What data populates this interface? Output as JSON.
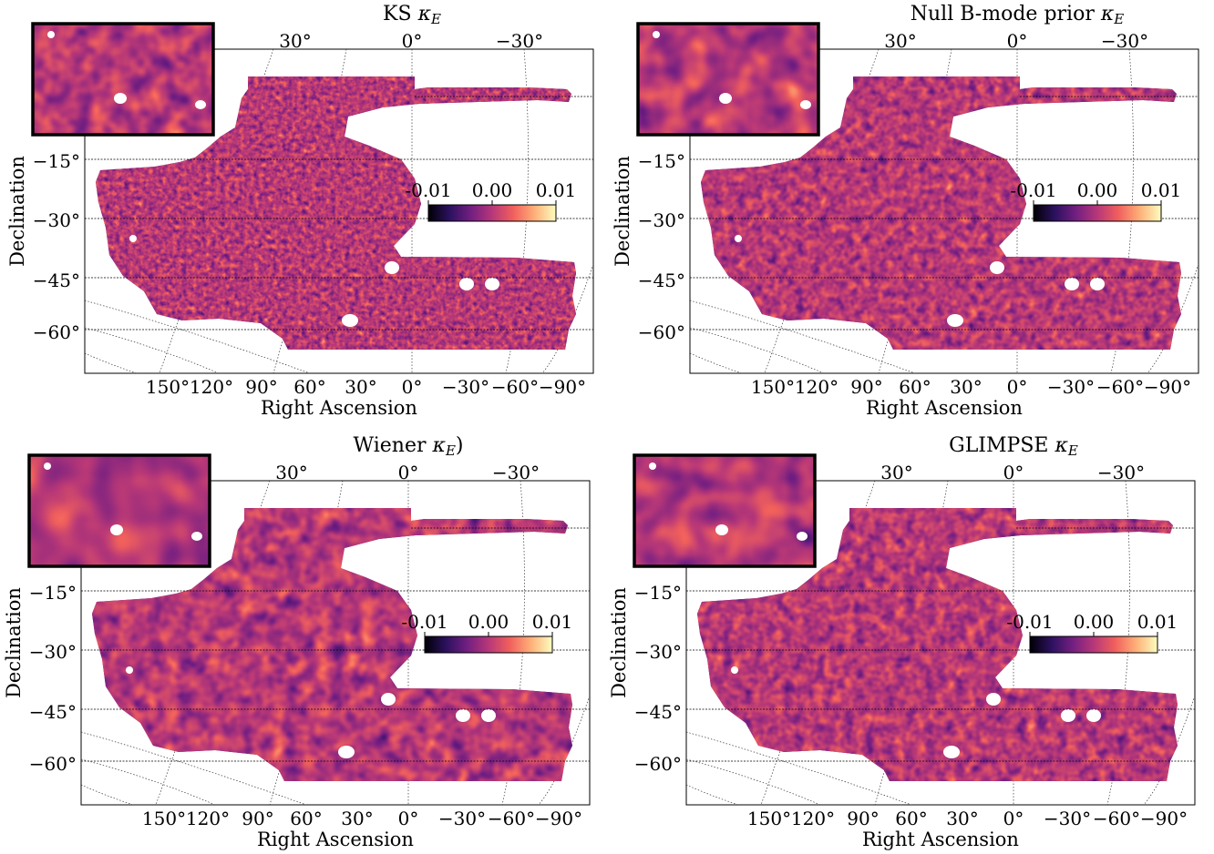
{
  "figure": {
    "panels": [
      {
        "title": "KS",
        "title_symbol": "κ",
        "title_sub": "E",
        "title_close": ""
      },
      {
        "title": "Null B-mode prior",
        "title_symbol": "κ",
        "title_sub": "E",
        "title_close": ""
      },
      {
        "title": "Wiener",
        "title_symbol": "κ",
        "title_sub": "E",
        "title_close": ")"
      },
      {
        "title": "GLIMPSE",
        "title_symbol": "κ",
        "title_sub": "E",
        "title_close": ""
      }
    ],
    "xlabel": "Right Ascension",
    "ylabel": "Declination",
    "top_ticks": [
      "30°",
      "0°",
      "−30°"
    ],
    "dec_ticks": [
      "−15°",
      "−30°",
      "−45°",
      "−60°"
    ],
    "ra_ticks": [
      "150°",
      "120°",
      "90°",
      "60°",
      "30°",
      "0°",
      "−30°",
      "−60°",
      "−90°"
    ],
    "colorbar_ticks": [
      "-0.01",
      "0.00",
      "0.01"
    ],
    "colormap": [
      "#000004",
      "#2c115f",
      "#721f81",
      "#b73779",
      "#f1605d",
      "#feb078",
      "#fcfdbf"
    ]
  },
  "chart_data": [
    {
      "type": "heatmap",
      "title": "KS κ_E",
      "xlabel": "Right Ascension",
      "ylabel": "Declination",
      "x_ticks": [
        150,
        120,
        90,
        60,
        30,
        0,
        -30,
        -60,
        -90
      ],
      "y_ticks": [
        -15,
        -30,
        -45,
        -60
      ],
      "top_ticks": [
        30,
        0,
        -30
      ],
      "colorbar_range": [
        -0.01,
        0.01
      ],
      "colormap": "magma",
      "inset": true
    },
    {
      "type": "heatmap",
      "title": "Null B-mode prior κ_E",
      "xlabel": "Right Ascension",
      "ylabel": "Declination",
      "x_ticks": [
        150,
        120,
        90,
        60,
        30,
        0,
        -30,
        -60,
        -90
      ],
      "y_ticks": [
        -15,
        -30,
        -45,
        -60
      ],
      "top_ticks": [
        30,
        0,
        -30
      ],
      "colorbar_range": [
        -0.01,
        0.01
      ],
      "colormap": "magma",
      "inset": true
    },
    {
      "type": "heatmap",
      "title": "Wiener κ_E)",
      "xlabel": "Right Ascension",
      "ylabel": "Declination",
      "x_ticks": [
        150,
        120,
        90,
        60,
        30,
        0,
        -30,
        -60,
        -90
      ],
      "y_ticks": [
        -15,
        -30,
        -45,
        -60
      ],
      "top_ticks": [
        30,
        0,
        -30
      ],
      "colorbar_range": [
        -0.01,
        0.01
      ],
      "colormap": "magma",
      "inset": true
    },
    {
      "type": "heatmap",
      "title": "GLIMPSE κ_E",
      "xlabel": "Right Ascension",
      "ylabel": "Declination",
      "x_ticks": [
        150,
        120,
        90,
        60,
        30,
        0,
        -30,
        -60,
        -90
      ],
      "y_ticks": [
        -15,
        -30,
        -45,
        -60
      ],
      "top_ticks": [
        30,
        0,
        -30
      ],
      "colorbar_range": [
        -0.01,
        0.01
      ],
      "colormap": "magma",
      "inset": true
    }
  ]
}
